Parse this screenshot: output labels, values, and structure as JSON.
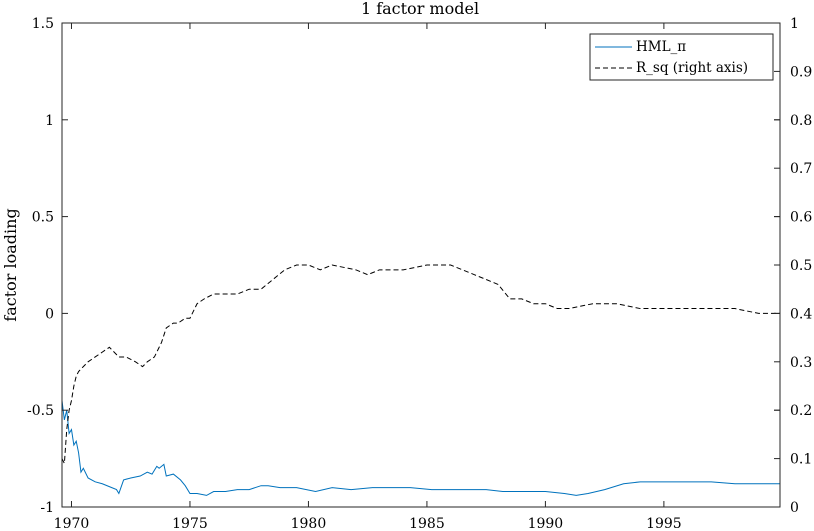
{
  "chart_data": {
    "type": "line",
    "title": "1 factor model",
    "xlabel": "",
    "ylabel": "factor loading",
    "ylabel_right": "",
    "xlim": [
      1969.6,
      1999.9
    ],
    "ylim": [
      -1,
      1.5
    ],
    "ylim_right": [
      0,
      1
    ],
    "x_ticks": [
      1970,
      1975,
      1980,
      1985,
      1990,
      1995
    ],
    "y_ticks": [
      1.5,
      1,
      0.5,
      0,
      -0.5,
      -1
    ],
    "y_tick_labels": [
      "1.5",
      "1",
      "0.5",
      "0",
      "-0.5",
      "-1"
    ],
    "y_right_ticks": [
      1,
      0.9,
      0.8,
      0.7,
      0.6,
      0.5,
      0.4,
      0.3,
      0.2,
      0.1,
      0
    ],
    "y_right_tick_labels": [
      "1",
      "0.9",
      "0.8",
      "0.7",
      "0.6",
      "0.5",
      "0.4",
      "0.3",
      "0.2",
      "0.1",
      "0"
    ],
    "grid": false,
    "legend_position": "top-right",
    "series": [
      {
        "name": "HML_π",
        "axis": "left",
        "color": "#0072BD",
        "style": "solid",
        "x": [
          1969.6,
          1969.7,
          1969.8,
          1969.9,
          1970.0,
          1970.1,
          1970.2,
          1970.3,
          1970.4,
          1970.5,
          1970.7,
          1971.0,
          1971.3,
          1971.7,
          1971.9,
          1972.0,
          1972.2,
          1972.5,
          1972.9,
          1973.2,
          1973.4,
          1973.6,
          1973.7,
          1973.9,
          1974.0,
          1974.3,
          1974.6,
          1974.8,
          1975.0,
          1975.3,
          1975.7,
          1976.0,
          1976.5,
          1977.0,
          1977.5,
          1978.0,
          1978.3,
          1978.8,
          1979.5,
          1980.3,
          1981.0,
          1981.8,
          1982.7,
          1983.5,
          1984.3,
          1985.2,
          1986.0,
          1986.8,
          1987.5,
          1988.2,
          1989.0,
          1990.0,
          1990.8,
          1991.3,
          1991.8,
          1992.5,
          1993.3,
          1994.0,
          1995.0,
          1996.0,
          1997.0,
          1998.0,
          1999.0,
          1999.9
        ],
        "values": [
          -0.45,
          -0.55,
          -0.5,
          -0.62,
          -0.6,
          -0.68,
          -0.66,
          -0.72,
          -0.82,
          -0.8,
          -0.85,
          -0.87,
          -0.88,
          -0.9,
          -0.91,
          -0.93,
          -0.86,
          -0.85,
          -0.84,
          -0.82,
          -0.83,
          -0.79,
          -0.8,
          -0.78,
          -0.84,
          -0.83,
          -0.86,
          -0.89,
          -0.93,
          -0.93,
          -0.94,
          -0.92,
          -0.92,
          -0.91,
          -0.91,
          -0.89,
          -0.89,
          -0.9,
          -0.9,
          -0.92,
          -0.9,
          -0.91,
          -0.9,
          -0.9,
          -0.9,
          -0.91,
          -0.91,
          -0.91,
          -0.91,
          -0.92,
          -0.92,
          -0.92,
          -0.93,
          -0.94,
          -0.93,
          -0.91,
          -0.88,
          -0.87,
          -0.87,
          -0.87,
          -0.87,
          -0.88,
          -0.88,
          -0.88
        ]
      },
      {
        "name": "R_sq (right axis)",
        "axis": "right",
        "color": "#000000",
        "style": "dashed",
        "x": [
          1969.6,
          1969.7,
          1969.8,
          1969.9,
          1970.0,
          1970.1,
          1970.2,
          1970.3,
          1970.5,
          1970.7,
          1971.0,
          1971.3,
          1971.6,
          1972.0,
          1972.3,
          1972.7,
          1973.0,
          1973.2,
          1973.5,
          1973.8,
          1974.0,
          1974.3,
          1974.5,
          1974.8,
          1975.0,
          1975.3,
          1975.6,
          1976.0,
          1976.5,
          1977.0,
          1977.5,
          1978.0,
          1978.5,
          1979.0,
          1979.5,
          1980.0,
          1980.5,
          1981.0,
          1982.0,
          1982.5,
          1983.0,
          1984.0,
          1985.0,
          1986.0,
          1986.5,
          1987.0,
          1987.5,
          1988.0,
          1988.5,
          1989.0,
          1989.5,
          1990.0,
          1990.5,
          1991.0,
          1992.0,
          1992.5,
          1993.0,
          1994.0,
          1995.0,
          1996.0,
          1997.0,
          1998.0,
          1999.0,
          1999.9
        ],
        "values": [
          0.1,
          0.09,
          0.16,
          0.2,
          0.22,
          0.25,
          0.27,
          0.28,
          0.29,
          0.3,
          0.31,
          0.32,
          0.33,
          0.31,
          0.31,
          0.3,
          0.29,
          0.3,
          0.31,
          0.34,
          0.37,
          0.38,
          0.38,
          0.39,
          0.39,
          0.42,
          0.43,
          0.44,
          0.44,
          0.44,
          0.45,
          0.45,
          0.47,
          0.49,
          0.5,
          0.5,
          0.49,
          0.5,
          0.49,
          0.48,
          0.49,
          0.49,
          0.5,
          0.5,
          0.49,
          0.48,
          0.47,
          0.46,
          0.43,
          0.43,
          0.42,
          0.42,
          0.41,
          0.41,
          0.42,
          0.42,
          0.42,
          0.41,
          0.41,
          0.41,
          0.41,
          0.41,
          0.4,
          0.4
        ]
      }
    ]
  }
}
